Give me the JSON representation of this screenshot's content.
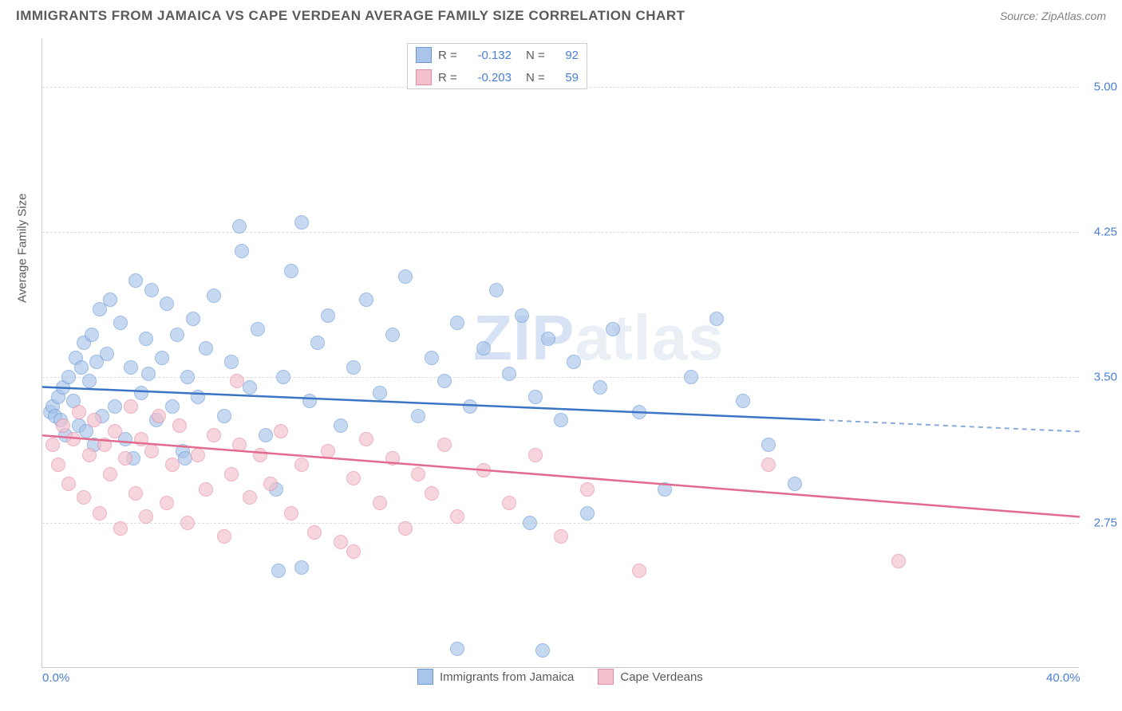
{
  "title": "IMMIGRANTS FROM JAMAICA VS CAPE VERDEAN AVERAGE FAMILY SIZE CORRELATION CHART",
  "source": "Source: ZipAtlas.com",
  "ylabel": "Average Family Size",
  "watermark_left": "ZIP",
  "watermark_right": "atlas",
  "chart": {
    "type": "scatter",
    "xlim": [
      0,
      40
    ],
    "ylim": [
      2.0,
      5.25
    ],
    "xticks": [
      {
        "v": 0,
        "label": "0.0%"
      },
      {
        "v": 40,
        "label": "40.0%"
      }
    ],
    "yticks": [
      2.75,
      3.5,
      4.25,
      5.0
    ],
    "grid_color": "#dddddd",
    "axis_color": "#cccccc",
    "background": "#ffffff",
    "series": [
      {
        "name": "Immigrants from Jamaica",
        "fill": "#a9c5ea",
        "stroke": "#6a99d8",
        "line_color": "#3a74c4",
        "marker_r": 9,
        "opacity": 0.65,
        "r_value": "-0.132",
        "n_value": "92",
        "regression": {
          "x1": 0,
          "y1": 3.45,
          "x2": 30,
          "y2": 3.28,
          "dash_to_x": 40,
          "dash_to_y": 3.22
        },
        "points": [
          [
            0.3,
            3.32
          ],
          [
            0.4,
            3.35
          ],
          [
            0.5,
            3.3
          ],
          [
            0.6,
            3.4
          ],
          [
            0.7,
            3.28
          ],
          [
            0.8,
            3.45
          ],
          [
            0.9,
            3.2
          ],
          [
            1.0,
            3.5
          ],
          [
            1.2,
            3.38
          ],
          [
            1.3,
            3.6
          ],
          [
            1.4,
            3.25
          ],
          [
            1.5,
            3.55
          ],
          [
            1.6,
            3.68
          ],
          [
            1.7,
            3.22
          ],
          [
            1.8,
            3.48
          ],
          [
            1.9,
            3.72
          ],
          [
            2.0,
            3.15
          ],
          [
            2.1,
            3.58
          ],
          [
            2.2,
            3.85
          ],
          [
            2.3,
            3.3
          ],
          [
            2.5,
            3.62
          ],
          [
            2.6,
            3.9
          ],
          [
            2.8,
            3.35
          ],
          [
            3.0,
            3.78
          ],
          [
            3.2,
            3.18
          ],
          [
            3.4,
            3.55
          ],
          [
            3.6,
            4.0
          ],
          [
            3.8,
            3.42
          ],
          [
            4.0,
            3.7
          ],
          [
            4.2,
            3.95
          ],
          [
            4.4,
            3.28
          ],
          [
            4.6,
            3.6
          ],
          [
            4.8,
            3.88
          ],
          [
            5.0,
            3.35
          ],
          [
            5.2,
            3.72
          ],
          [
            5.4,
            3.12
          ],
          [
            5.6,
            3.5
          ],
          [
            5.8,
            3.8
          ],
          [
            6.0,
            3.4
          ],
          [
            6.3,
            3.65
          ],
          [
            6.6,
            3.92
          ],
          [
            7.0,
            3.3
          ],
          [
            7.3,
            3.58
          ],
          [
            7.6,
            4.28
          ],
          [
            8.0,
            3.45
          ],
          [
            8.3,
            3.75
          ],
          [
            8.6,
            3.2
          ],
          [
            9.0,
            2.92
          ],
          [
            9.3,
            3.5
          ],
          [
            9.6,
            4.05
          ],
          [
            10.0,
            4.3
          ],
          [
            10.3,
            3.38
          ],
          [
            10.6,
            3.68
          ],
          [
            11.0,
            3.82
          ],
          [
            11.5,
            3.25
          ],
          [
            12.0,
            3.55
          ],
          [
            12.5,
            3.9
          ],
          [
            13.0,
            3.42
          ],
          [
            13.5,
            3.72
          ],
          [
            14.0,
            4.02
          ],
          [
            14.5,
            3.3
          ],
          [
            15.0,
            3.6
          ],
          [
            15.5,
            3.48
          ],
          [
            16.0,
            3.78
          ],
          [
            10.0,
            2.52
          ],
          [
            9.1,
            2.5
          ],
          [
            16.5,
            3.35
          ],
          [
            17.0,
            3.65
          ],
          [
            17.5,
            3.95
          ],
          [
            18.0,
            3.52
          ],
          [
            18.5,
            3.82
          ],
          [
            19.0,
            3.4
          ],
          [
            19.5,
            3.7
          ],
          [
            20.0,
            3.28
          ],
          [
            20.5,
            3.58
          ],
          [
            21.0,
            2.8
          ],
          [
            21.5,
            3.45
          ],
          [
            22.0,
            3.75
          ],
          [
            23.0,
            3.32
          ],
          [
            24.0,
            2.92
          ],
          [
            25.0,
            3.5
          ],
          [
            26.0,
            3.8
          ],
          [
            27.0,
            3.38
          ],
          [
            28.0,
            3.15
          ],
          [
            16.0,
            2.1
          ],
          [
            19.3,
            2.09
          ],
          [
            29.0,
            2.95
          ],
          [
            18.8,
            2.75
          ],
          [
            7.7,
            4.15
          ],
          [
            3.5,
            3.08
          ],
          [
            4.1,
            3.52
          ],
          [
            5.5,
            3.08
          ]
        ]
      },
      {
        "name": "Cape Verdeans",
        "fill": "#f4c0cc",
        "stroke": "#e68aa3",
        "line_color": "#e26b8f",
        "marker_r": 9,
        "opacity": 0.65,
        "r_value": "-0.203",
        "n_value": "59",
        "regression": {
          "x1": 0,
          "y1": 3.2,
          "x2": 40,
          "y2": 2.78
        },
        "points": [
          [
            0.4,
            3.15
          ],
          [
            0.6,
            3.05
          ],
          [
            0.8,
            3.25
          ],
          [
            1.0,
            2.95
          ],
          [
            1.2,
            3.18
          ],
          [
            1.4,
            3.32
          ],
          [
            1.6,
            2.88
          ],
          [
            1.8,
            3.1
          ],
          [
            2.0,
            3.28
          ],
          [
            2.2,
            2.8
          ],
          [
            2.4,
            3.15
          ],
          [
            2.6,
            3.0
          ],
          [
            2.8,
            3.22
          ],
          [
            3.0,
            2.72
          ],
          [
            3.2,
            3.08
          ],
          [
            3.4,
            3.35
          ],
          [
            3.6,
            2.9
          ],
          [
            3.8,
            3.18
          ],
          [
            4.0,
            2.78
          ],
          [
            4.2,
            3.12
          ],
          [
            4.5,
            3.3
          ],
          [
            4.8,
            2.85
          ],
          [
            5.0,
            3.05
          ],
          [
            5.3,
            3.25
          ],
          [
            5.6,
            2.75
          ],
          [
            6.0,
            3.1
          ],
          [
            6.3,
            2.92
          ],
          [
            6.6,
            3.2
          ],
          [
            7.0,
            2.68
          ],
          [
            7.3,
            3.0
          ],
          [
            7.6,
            3.15
          ],
          [
            8.0,
            2.88
          ],
          [
            8.4,
            3.1
          ],
          [
            8.8,
            2.95
          ],
          [
            9.2,
            3.22
          ],
          [
            9.6,
            2.8
          ],
          [
            10.0,
            3.05
          ],
          [
            10.5,
            2.7
          ],
          [
            11.0,
            3.12
          ],
          [
            11.5,
            2.65
          ],
          [
            12.0,
            2.98
          ],
          [
            12.5,
            3.18
          ],
          [
            12.0,
            2.6
          ],
          [
            13.0,
            2.85
          ],
          [
            13.5,
            3.08
          ],
          [
            14.0,
            2.72
          ],
          [
            14.5,
            3.0
          ],
          [
            15.0,
            2.9
          ],
          [
            15.5,
            3.15
          ],
          [
            16.0,
            2.78
          ],
          [
            17.0,
            3.02
          ],
          [
            18.0,
            2.85
          ],
          [
            19.0,
            3.1
          ],
          [
            20.0,
            2.68
          ],
          [
            21.0,
            2.92
          ],
          [
            23.0,
            2.5
          ],
          [
            28.0,
            3.05
          ],
          [
            33.0,
            2.55
          ],
          [
            7.5,
            3.48
          ]
        ]
      }
    ]
  }
}
